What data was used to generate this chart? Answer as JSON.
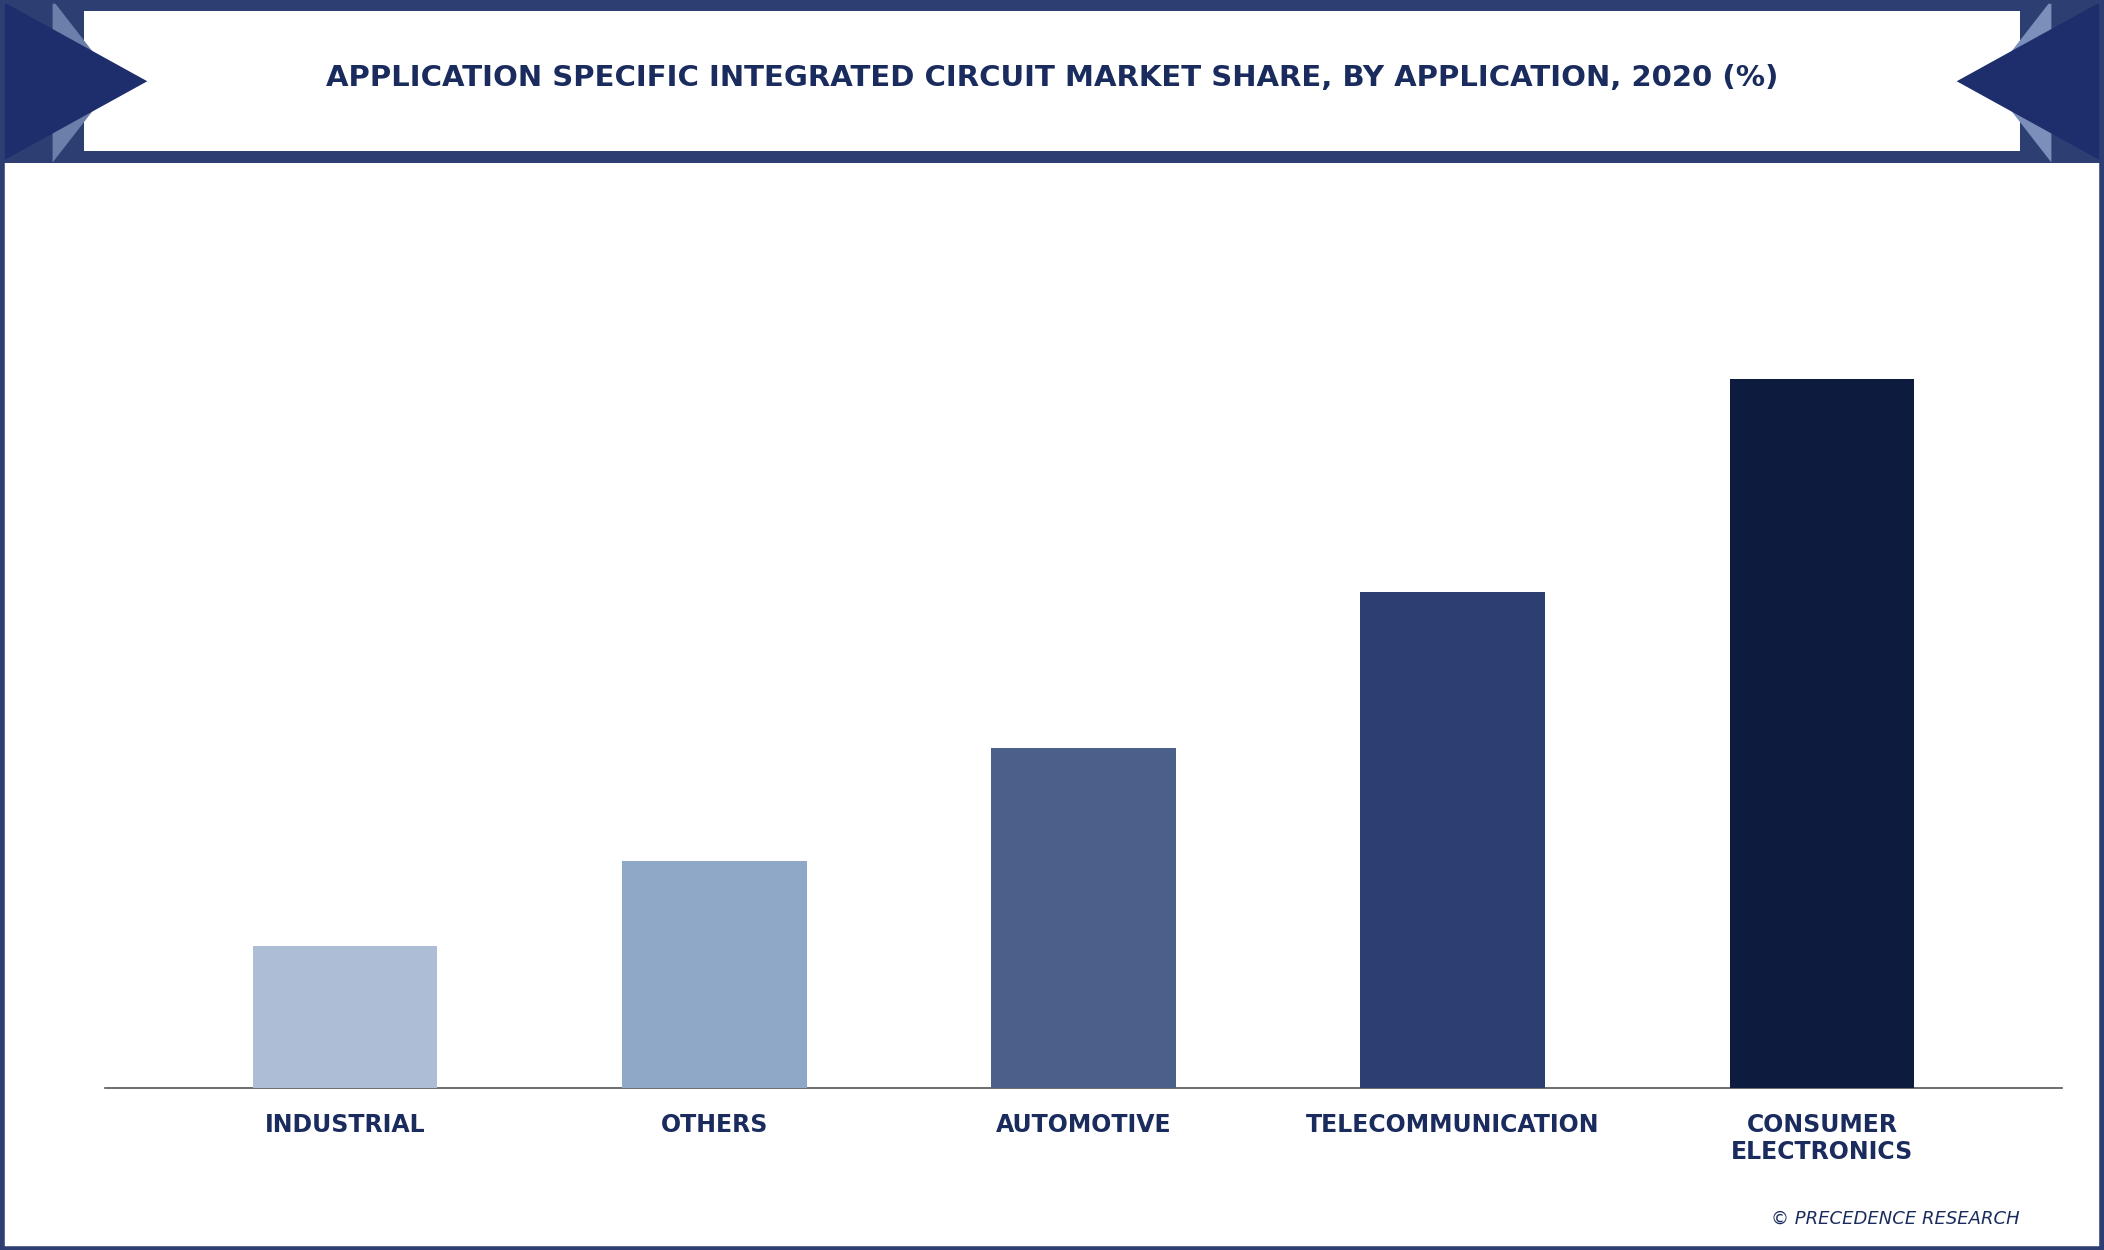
{
  "title": "APPLICATION SPECIFIC INTEGRATED CIRCUIT MARKET SHARE, BY APPLICATION, 2020 (%)",
  "categories": [
    "INDUSTRIAL",
    "OTHERS",
    "AUTOMOTIVE",
    "TELECOMMUNICATION",
    "CONSUMER\nELECTRONICS"
  ],
  "values": [
    10,
    16,
    24,
    35,
    50
  ],
  "bar_colors": [
    "#adbdd6",
    "#8fa8c8",
    "#4a5f8a",
    "#2d3f72",
    "#0d1b3e"
  ],
  "background_color": "#ffffff",
  "title_bg_color": "#ffffff",
  "title_color": "#1a2b5e",
  "title_border_color": "#2d3f72",
  "tick_label_color": "#1a2b5e",
  "watermark": "© PRECEDENCE RESEARCH",
  "watermark_color": "#1a2b5e",
  "ylim": [
    0,
    60
  ],
  "bar_width": 0.5,
  "left_tri_dark": "#1e2d6b",
  "left_tri_light": "#6b7faa",
  "right_tri_dark": "#1e2d6b",
  "right_tri_light": "#7b8fba",
  "outer_border_color": "#2d3f72",
  "title_fontsize": 21,
  "tick_fontsize": 17
}
